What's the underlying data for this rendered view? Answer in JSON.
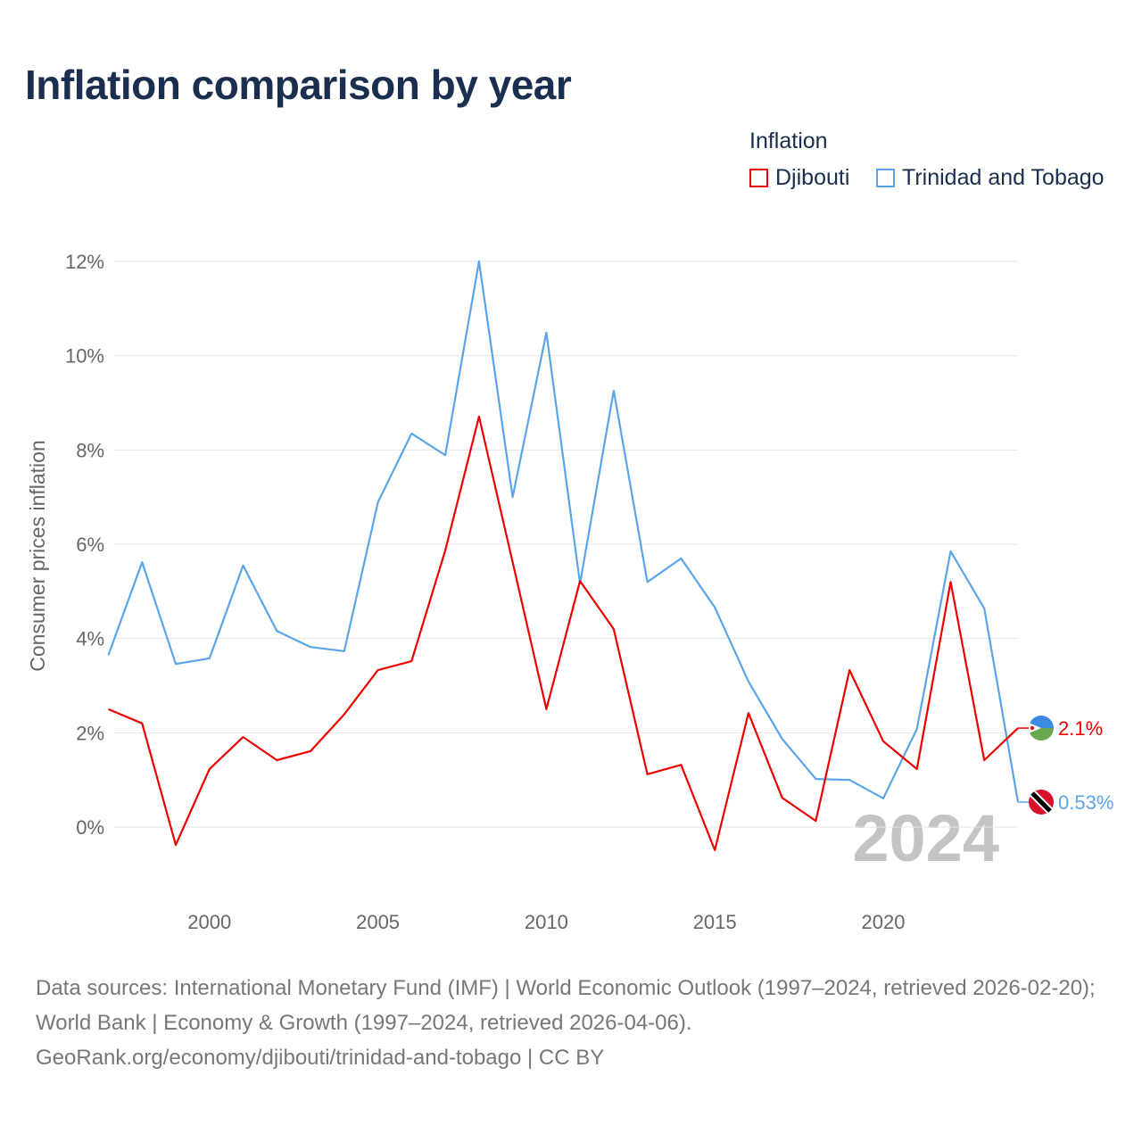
{
  "title": "Inflation comparison by year",
  "footer": {
    "sources": "Data sources: International Monetary Fund (IMF) | World Economic Outlook (1997–2024, retrieved 2026-02-20); World Bank | Economy & Growth (1997–2024, retrieved 2026-04-06).",
    "link": "GeoRank.org/economy/djibouti/trinidad-and-tobago | CC BY"
  },
  "chart_data": {
    "type": "line",
    "title": "Inflation comparison by year",
    "legend_title": "Inflation",
    "legend_position": "top-right",
    "ylabel": "Consumer prices inflation",
    "xlabel": "",
    "ylim": [
      -1,
      12.5
    ],
    "xlim": [
      1997,
      2024
    ],
    "yticks": [
      0,
      2,
      4,
      6,
      8,
      10,
      12
    ],
    "ytick_labels": [
      "0%",
      "2%",
      "4%",
      "6%",
      "8%",
      "10%",
      "12%"
    ],
    "xticks": [
      2000,
      2005,
      2010,
      2015,
      2020
    ],
    "xtick_labels": [
      "2000",
      "2005",
      "2010",
      "2015",
      "2020"
    ],
    "grid": true,
    "year_watermark": "2024",
    "x": [
      1997,
      1998,
      1999,
      2000,
      2001,
      2002,
      2003,
      2004,
      2005,
      2006,
      2007,
      2008,
      2009,
      2010,
      2011,
      2012,
      2013,
      2014,
      2015,
      2016,
      2017,
      2018,
      2019,
      2020,
      2021,
      2022,
      2023,
      2024
    ],
    "series": [
      {
        "name": "Djibouti",
        "color": "#ee0000",
        "end_label": "2.1%",
        "values": [
          2.5,
          2.2,
          -0.38,
          1.23,
          1.91,
          1.42,
          1.61,
          2.39,
          3.33,
          3.52,
          5.87,
          8.71,
          5.62,
          2.5,
          5.22,
          4.2,
          1.12,
          1.32,
          -0.49,
          2.42,
          0.62,
          0.13,
          3.33,
          1.82,
          1.23,
          5.2,
          1.42,
          2.1
        ]
      },
      {
        "name": "Trinidad and Tobago",
        "color": "#5aa5ea",
        "end_label": "0.53%",
        "values": [
          3.65,
          5.62,
          3.46,
          3.58,
          5.55,
          4.16,
          3.82,
          3.73,
          6.89,
          8.35,
          7.89,
          12.0,
          7.0,
          10.49,
          5.17,
          9.26,
          5.2,
          5.7,
          4.66,
          3.09,
          1.87,
          1.02,
          1.0,
          0.61,
          2.08,
          5.85,
          4.64,
          0.53
        ]
      }
    ]
  }
}
